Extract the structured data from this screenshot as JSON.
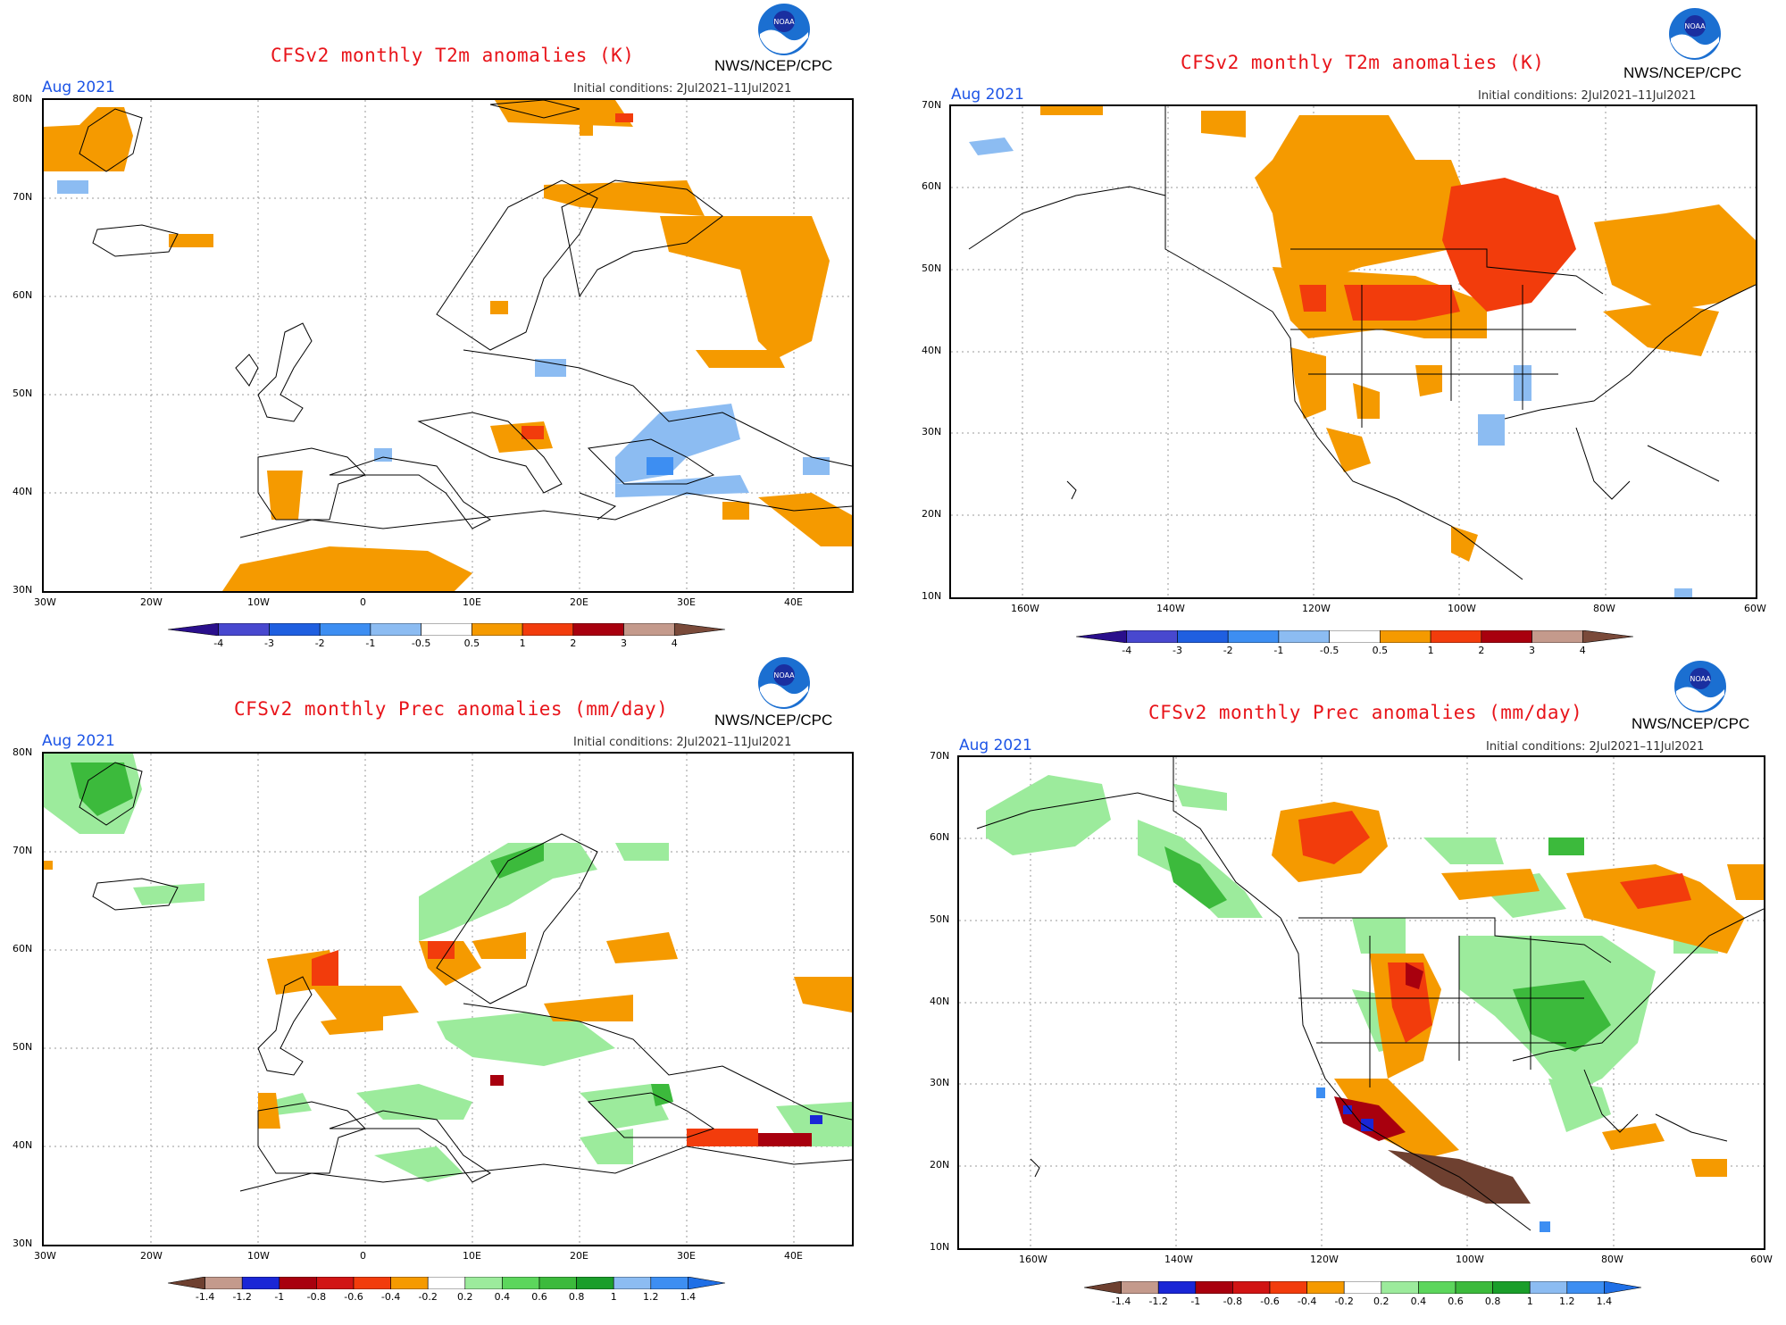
{
  "panels": [
    {
      "id": "p1",
      "title": "CFSv2 monthly T2m anomalies (K)",
      "month": "Aug 2021",
      "initial_conditions": "Initial conditions:  2Jul2021–11Jul2021",
      "source": "NWS/NCEP/CPC",
      "lat_labels": [
        "80N",
        "70N",
        "60N",
        "50N",
        "40N",
        "30N"
      ],
      "lon_labels": [
        "30W",
        "20W",
        "10W",
        "0",
        "10E",
        "20E",
        "30E",
        "40E"
      ],
      "colorbar_ticks": [
        "-4",
        "-3",
        "-2",
        "-1",
        "-0.5",
        "0.5",
        "1",
        "2",
        "3",
        "4"
      ]
    },
    {
      "id": "p2",
      "title": "CFSv2 monthly T2m anomalies (K)",
      "month": "Aug 2021",
      "initial_conditions": "Initial conditions:  2Jul2021–11Jul2021",
      "source": "NWS/NCEP/CPC",
      "lat_labels": [
        "70N",
        "60N",
        "50N",
        "40N",
        "30N",
        "20N",
        "10N"
      ],
      "lon_labels": [
        "160W",
        "140W",
        "120W",
        "100W",
        "80W",
        "60W"
      ],
      "colorbar_ticks": [
        "-4",
        "-3",
        "-2",
        "-1",
        "-0.5",
        "0.5",
        "1",
        "2",
        "3",
        "4"
      ]
    },
    {
      "id": "p3",
      "title": "CFSv2 monthly Prec anomalies (mm/day)",
      "month": "Aug 2021",
      "initial_conditions": "Initial conditions:  2Jul2021–11Jul2021",
      "source": "NWS/NCEP/CPC",
      "lat_labels": [
        "80N",
        "70N",
        "60N",
        "50N",
        "40N",
        "30N"
      ],
      "lon_labels": [
        "30W",
        "20W",
        "10W",
        "0",
        "10E",
        "20E",
        "30E",
        "40E"
      ],
      "colorbar_ticks": [
        "-1.4",
        "-1.2",
        "-1",
        "-0.8",
        "-0.6",
        "-0.4",
        "-0.2",
        "0.2",
        "0.4",
        "0.6",
        "0.8",
        "1",
        "1.2",
        "1.4"
      ]
    },
    {
      "id": "p4",
      "title": "CFSv2 monthly Prec anomalies (mm/day)",
      "month": "Aug 2021",
      "initial_conditions": "Initial conditions:  2Jul2021–11Jul2021",
      "source": "NWS/NCEP/CPC",
      "lat_labels": [
        "70N",
        "60N",
        "50N",
        "40N",
        "30N",
        "20N",
        "10N"
      ],
      "lon_labels": [
        "160W",
        "140W",
        "120W",
        "100W",
        "80W",
        "60W"
      ],
      "colorbar_ticks": [
        "-1.4",
        "-1.2",
        "-1",
        "-0.8",
        "-0.6",
        "-0.4",
        "-0.2",
        "0.2",
        "0.4",
        "0.6",
        "0.8",
        "1",
        "1.2",
        "1.4"
      ]
    }
  ],
  "logo_text": "NOAA",
  "colorscales": {
    "t2m": [
      "#2a0f8c",
      "#4848cf",
      "#1f5fe0",
      "#3d8ef2",
      "#8cbcf2",
      "#ffffff",
      "#f59a00",
      "#f23c0c",
      "#a8000e",
      "#c49a8c",
      "#7a4a3a"
    ],
    "prec": [
      "#6e4030",
      "#c49a8c",
      "#1a26d6",
      "#a8000e",
      "#d11414",
      "#f23c0c",
      "#f59a00",
      "#ffffff",
      "#9ceb9c",
      "#5cd65c",
      "#3cba3c",
      "#1a9e2a",
      "#8cbcf2",
      "#3d8ef2",
      "#1f6fe6"
    ]
  }
}
